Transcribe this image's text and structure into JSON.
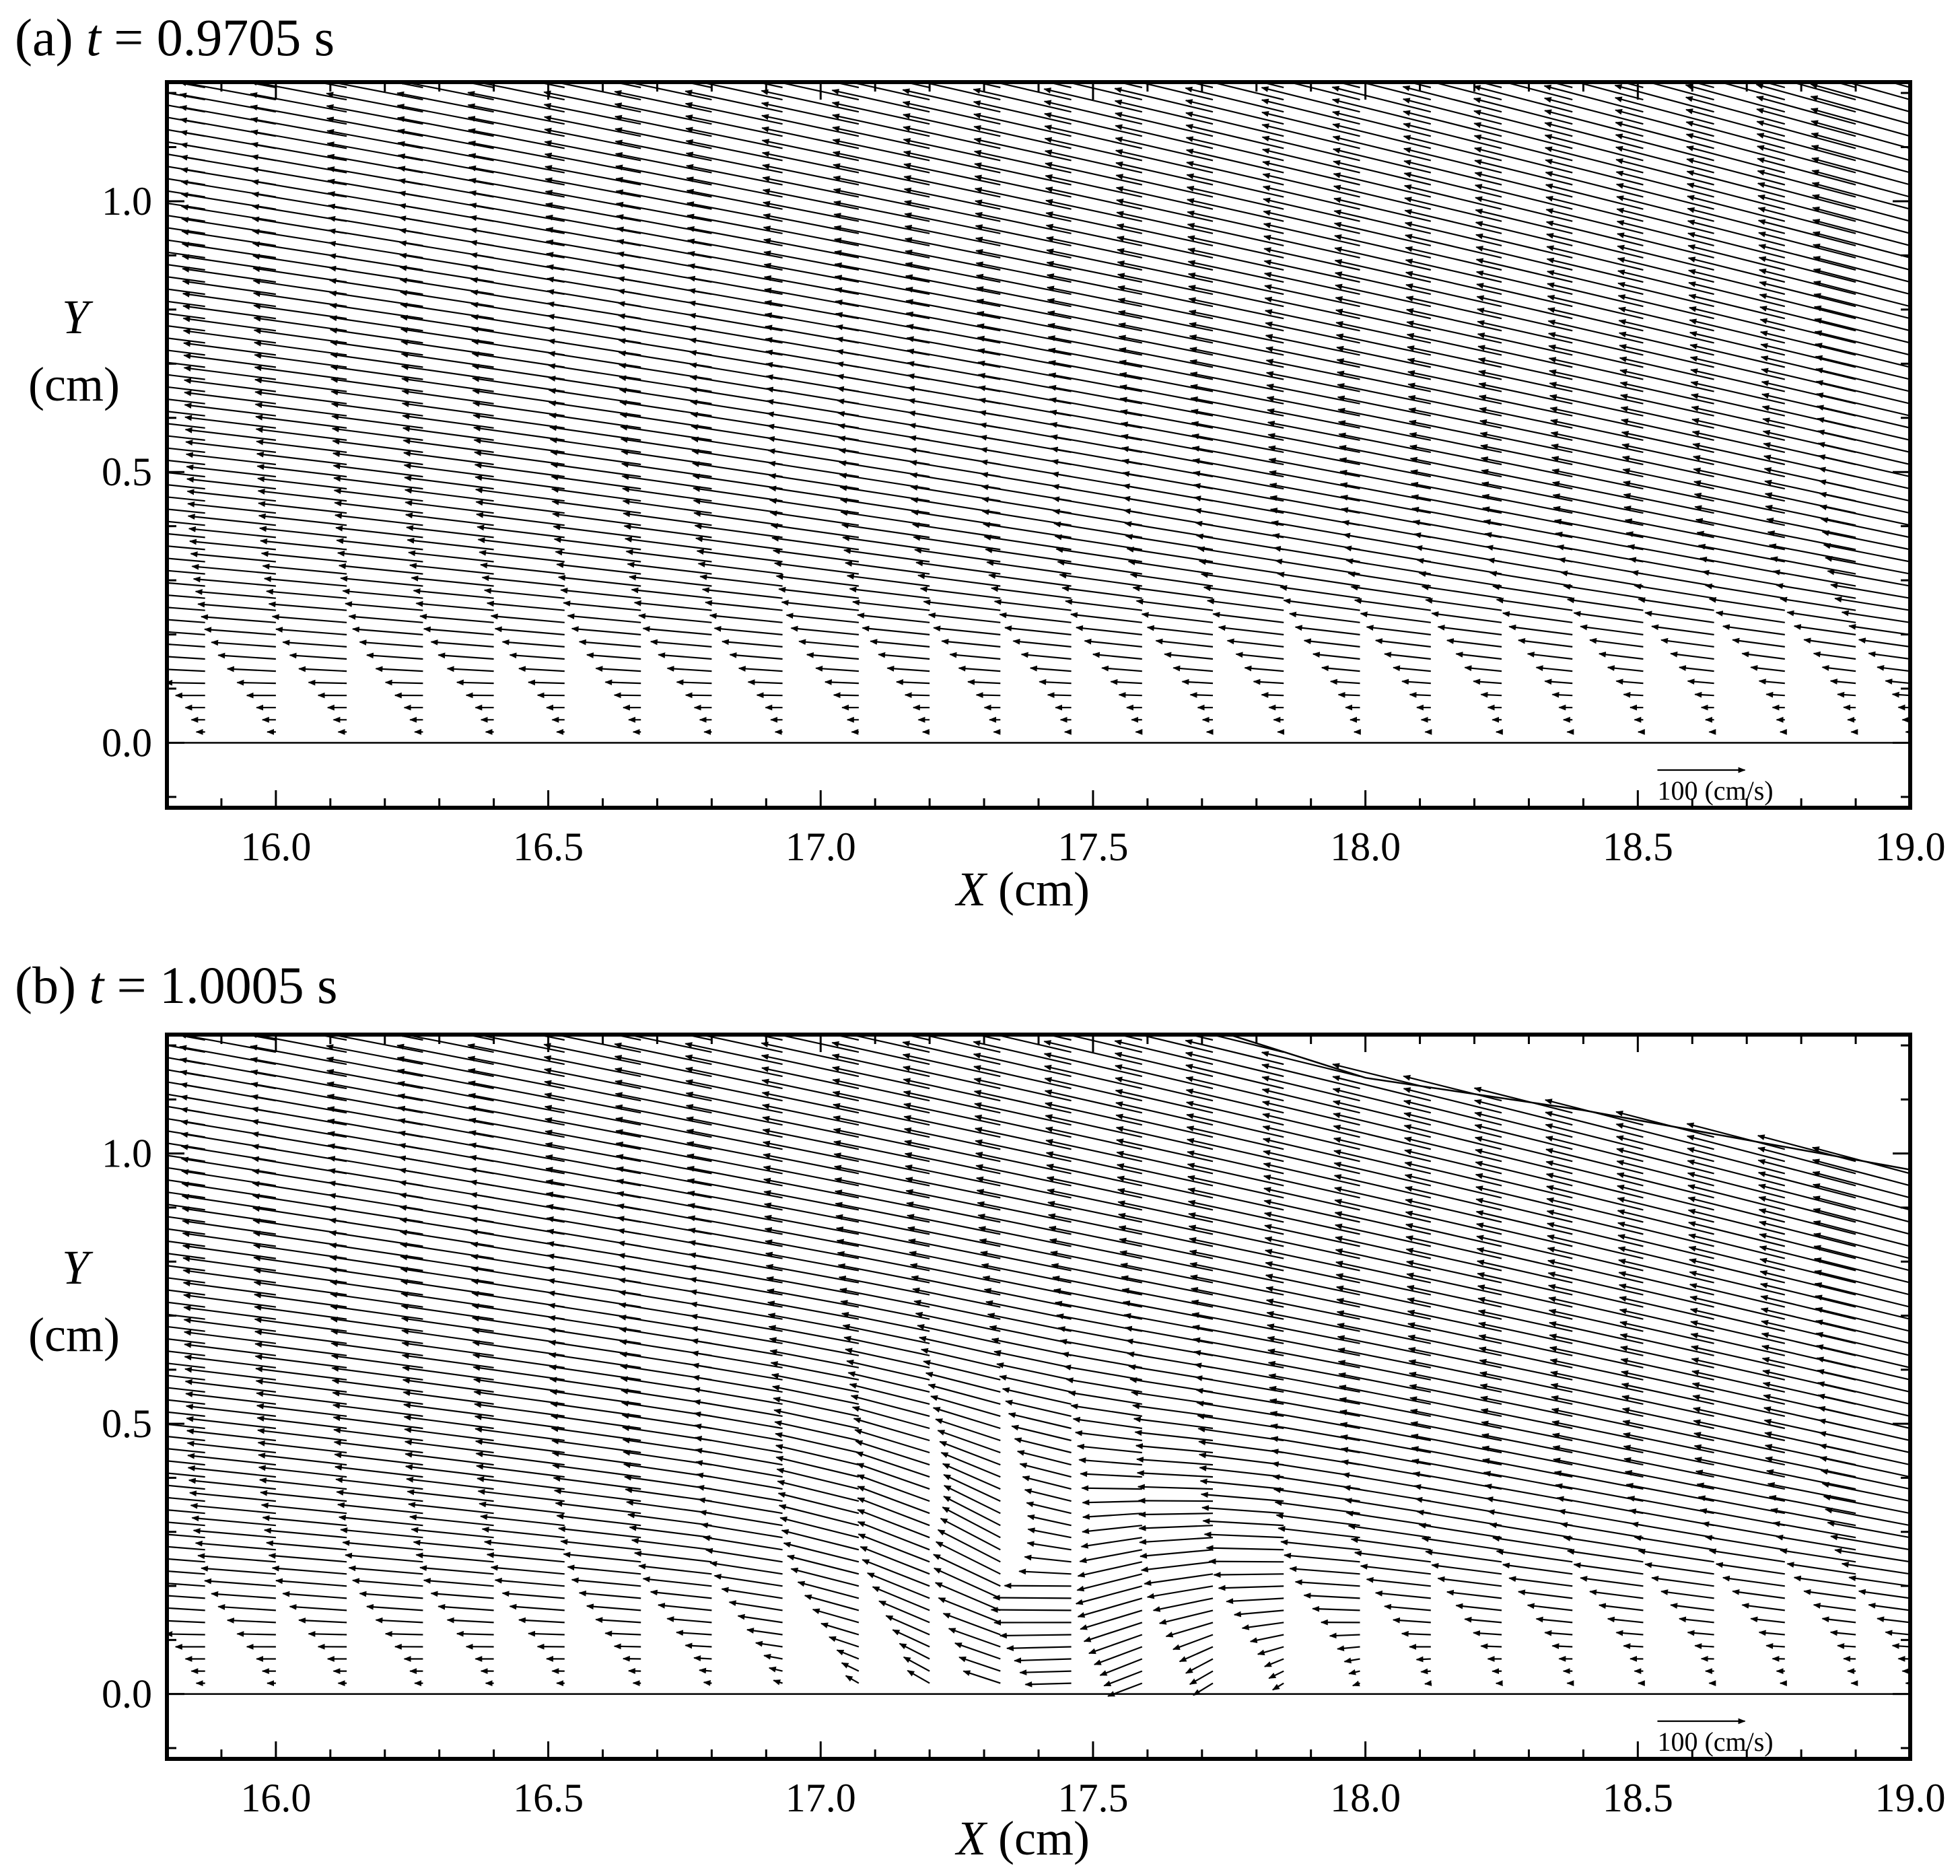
{
  "figure": {
    "background": "#ffffff",
    "ink": "#000000"
  },
  "chart_data": [
    {
      "type": "vector_field",
      "panel_label": "(a)",
      "time_var": "t",
      "time_text": " = 0.9705 s",
      "xlabel_var": "X",
      "xlabel_unit": " (cm)",
      "ylabel_var": "Y",
      "ylabel_unit": "(cm)",
      "xlim": [
        15.8,
        19.0
      ],
      "ylim": [
        -0.12,
        1.22
      ],
      "xticks": [
        16.0,
        16.5,
        17.0,
        17.5,
        18.0,
        18.5,
        19.0
      ],
      "xtick_labels": [
        "16.0",
        "16.5",
        "17.0",
        "17.5",
        "18.0",
        "18.5",
        "19.0"
      ],
      "yticks": [
        0.0,
        0.5,
        1.0
      ],
      "ytick_labels": [
        "0.0",
        "0.5",
        "1.0"
      ],
      "bed_level": 0.0,
      "reference_vector": {
        "magnitude": 100,
        "label": "100 (cm/s)"
      },
      "column_x": [
        15.87,
        16.0,
        16.13,
        16.27,
        16.4,
        16.53,
        16.67,
        16.8,
        16.93,
        17.07,
        17.2,
        17.33,
        17.46,
        17.59,
        17.72,
        17.85,
        17.99,
        18.12,
        18.25,
        18.38,
        18.51,
        18.64,
        18.77,
        18.9,
        19.0
      ],
      "surface": {
        "x": [
          15.8,
          17.0,
          18.0,
          19.0
        ],
        "y": [
          1.22,
          1.22,
          1.22,
          1.22
        ]
      },
      "profile": {
        "y": [
          0.02,
          0.06,
          0.1,
          0.15,
          0.2,
          0.25,
          0.3,
          0.35,
          0.4,
          0.5,
          0.6,
          0.8,
          1.0,
          1.2
        ],
        "u_upstream": [
          -10,
          -20,
          -40,
          -65,
          -82,
          -90,
          -95,
          -98,
          -100,
          -102,
          -104,
          -106,
          -108,
          -110
        ],
        "u_downstream": [
          -5,
          -12,
          -24,
          -45,
          -70,
          -88,
          -96,
          -100,
          -103,
          -105,
          -107,
          -110,
          -112,
          -114
        ],
        "v_upstream": [
          0,
          0,
          0,
          4,
          6,
          7,
          8,
          9,
          10,
          11,
          12,
          14,
          17,
          20
        ],
        "v_downstream": [
          0,
          0,
          2,
          6,
          10,
          14,
          18,
          20,
          22,
          24,
          25,
          28,
          30,
          32
        ]
      }
    },
    {
      "type": "vector_field",
      "panel_label": "(b)",
      "time_var": "t",
      "time_text": " = 1.0005 s",
      "xlabel_var": "X",
      "xlabel_unit": " (cm)",
      "ylabel_var": "Y",
      "ylabel_unit": "(cm)",
      "xlim": [
        15.8,
        19.0
      ],
      "ylim": [
        -0.12,
        1.22
      ],
      "xticks": [
        16.0,
        16.5,
        17.0,
        17.5,
        18.0,
        18.5,
        19.0
      ],
      "xtick_labels": [
        "16.0",
        "16.5",
        "17.0",
        "17.5",
        "18.0",
        "18.5",
        "19.0"
      ],
      "yticks": [
        0.0,
        0.5,
        1.0
      ],
      "ytick_labels": [
        "0.0",
        "0.5",
        "1.0"
      ],
      "bed_level": 0.0,
      "reference_vector": {
        "magnitude": 100,
        "label": "100 (cm/s)"
      },
      "column_x": [
        15.87,
        16.0,
        16.13,
        16.27,
        16.4,
        16.53,
        16.67,
        16.8,
        16.93,
        17.07,
        17.2,
        17.33,
        17.46,
        17.59,
        17.72,
        17.85,
        17.99,
        18.12,
        18.25,
        18.38,
        18.51,
        18.64,
        18.77,
        18.9,
        19.0
      ],
      "surface": {
        "x": [
          15.8,
          17.75,
          18.0,
          18.4,
          19.0
        ],
        "y": [
          1.22,
          1.22,
          1.14,
          1.08,
          0.97
        ]
      },
      "profile": {
        "y": [
          0.02,
          0.06,
          0.1,
          0.15,
          0.2,
          0.25,
          0.3,
          0.35,
          0.4,
          0.5,
          0.6,
          0.8,
          1.0,
          1.2
        ],
        "u_upstream": [
          -10,
          -20,
          -40,
          -65,
          -82,
          -90,
          -95,
          -98,
          -100,
          -102,
          -104,
          -106,
          -108,
          -110
        ],
        "u_downstream": [
          -5,
          -12,
          -24,
          -45,
          -70,
          -88,
          -96,
          -100,
          -103,
          -105,
          -107,
          -110,
          -112,
          -114
        ],
        "v_upstream": [
          0,
          0,
          0,
          4,
          6,
          7,
          8,
          9,
          10,
          11,
          12,
          14,
          17,
          20
        ],
        "v_downstream": [
          0,
          0,
          2,
          6,
          10,
          14,
          18,
          20,
          22,
          24,
          25,
          28,
          30,
          32
        ]
      },
      "vortex": {
        "x": 17.45,
        "y": 0.2,
        "strength": 75,
        "radius": 0.35
      }
    }
  ]
}
